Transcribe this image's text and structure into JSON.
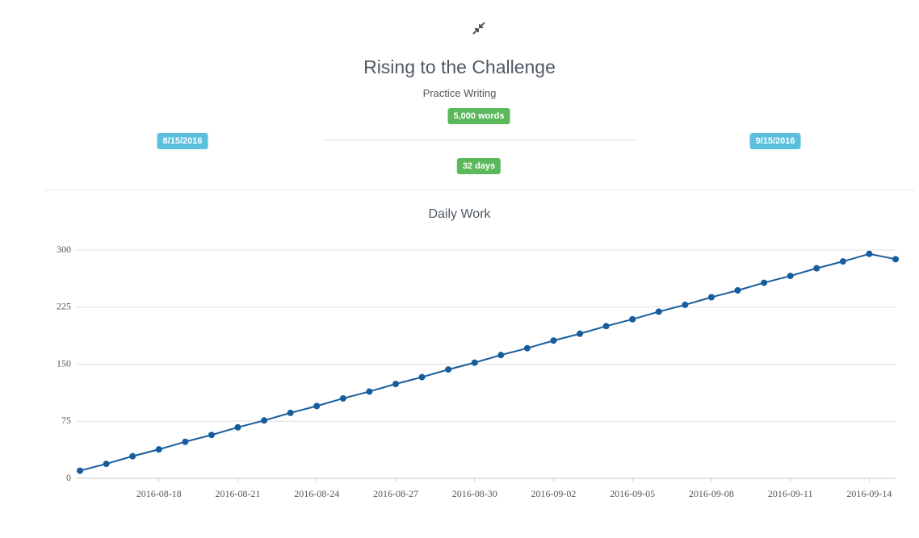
{
  "header": {
    "title": "Rising to the Challenge",
    "subtitle": "Practice Writing",
    "goal": "5,000 words",
    "start_date": "8/15/2016",
    "end_date": "9/15/2016",
    "duration": "32 days"
  },
  "chart_data": {
    "type": "line",
    "title": "Daily Work",
    "color": "#175d9c",
    "grid": true,
    "x": [
      "2016-08-15",
      "2016-08-16",
      "2016-08-17",
      "2016-08-18",
      "2016-08-19",
      "2016-08-20",
      "2016-08-21",
      "2016-08-22",
      "2016-08-23",
      "2016-08-24",
      "2016-08-25",
      "2016-08-26",
      "2016-08-27",
      "2016-08-28",
      "2016-08-29",
      "2016-08-30",
      "2016-08-31",
      "2016-09-01",
      "2016-09-02",
      "2016-09-03",
      "2016-09-04",
      "2016-09-05",
      "2016-09-06",
      "2016-09-07",
      "2016-09-08",
      "2016-09-09",
      "2016-09-10",
      "2016-09-11",
      "2016-09-12",
      "2016-09-13",
      "2016-09-14",
      "2016-09-15"
    ],
    "values": [
      10,
      19,
      29,
      38,
      48,
      57,
      67,
      76,
      86,
      95,
      105,
      114,
      124,
      133,
      143,
      152,
      162,
      171,
      181,
      190,
      200,
      209,
      219,
      228,
      238,
      247,
      257,
      266,
      276,
      285,
      295,
      288
    ],
    "xlim": [
      "2016-08-15",
      "2016-09-15"
    ],
    "xticks": [
      "2016-08-18",
      "2016-08-21",
      "2016-08-24",
      "2016-08-27",
      "2016-08-30",
      "2016-09-02",
      "2016-09-05",
      "2016-09-08",
      "2016-09-11",
      "2016-09-14"
    ],
    "ylim": [
      0,
      300
    ],
    "yticks": [
      0,
      75,
      150,
      225,
      300
    ]
  }
}
